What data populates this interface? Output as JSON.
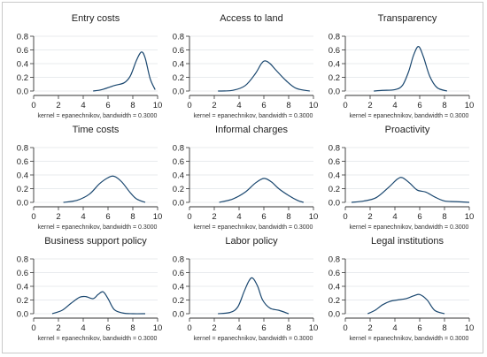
{
  "figure": {
    "ytick_labels": [
      "0.0",
      "0.2",
      "0.4",
      "0.6",
      "0.8"
    ],
    "xtick_labels": [
      "0",
      "2",
      "4",
      "6",
      "8",
      "10"
    ],
    "line_color": "#1a476f"
  },
  "chart_data": [
    {
      "type": "line",
      "title": "Entry costs",
      "note": "kernel = epanechnikov, bandwidth = 0.3000",
      "xlim": [
        0,
        10
      ],
      "ylim": [
        0,
        0.8
      ],
      "x": [
        4.8,
        5.5,
        6.5,
        7.3,
        7.8,
        8.3,
        8.7,
        9.0,
        9.4,
        9.8
      ],
      "y": [
        0.0,
        0.02,
        0.08,
        0.12,
        0.22,
        0.45,
        0.57,
        0.48,
        0.18,
        0.02
      ]
    },
    {
      "type": "line",
      "title": "Access to land",
      "note": "kernel = epanechnikov, bandwidth = 0.3000",
      "xlim": [
        0,
        10
      ],
      "ylim": [
        0,
        0.8
      ],
      "x": [
        2.3,
        3.5,
        4.5,
        5.3,
        5.8,
        6.1,
        6.5,
        7.0,
        7.8,
        8.6,
        9.7
      ],
      "y": [
        0.0,
        0.01,
        0.08,
        0.25,
        0.4,
        0.44,
        0.4,
        0.3,
        0.15,
        0.04,
        0.0
      ]
    },
    {
      "type": "line",
      "title": "Transparency",
      "note": "kernel = epanechnikov, bandwidth = 0.3000",
      "xlim": [
        0,
        10
      ],
      "ylim": [
        0,
        0.8
      ],
      "x": [
        2.3,
        3.0,
        4.0,
        4.6,
        5.1,
        5.5,
        5.9,
        6.3,
        6.8,
        7.4,
        8.2
      ],
      "y": [
        0.0,
        0.01,
        0.02,
        0.08,
        0.28,
        0.52,
        0.65,
        0.5,
        0.22,
        0.05,
        0.0
      ]
    },
    {
      "type": "line",
      "title": "Time costs",
      "note": "kernel = epanechnikov, bandwidth = 0.3000",
      "xlim": [
        0,
        10
      ],
      "ylim": [
        0,
        0.8
      ],
      "x": [
        2.4,
        3.5,
        4.5,
        5.3,
        6.0,
        6.5,
        7.1,
        7.8,
        8.3,
        9.0
      ],
      "y": [
        0.0,
        0.03,
        0.12,
        0.27,
        0.36,
        0.38,
        0.3,
        0.14,
        0.05,
        0.0
      ]
    },
    {
      "type": "line",
      "title": "Informal charges",
      "note": "kernel = epanechnikov, bandwidth = 0.3000",
      "xlim": [
        0,
        10
      ],
      "ylim": [
        0,
        0.8
      ],
      "x": [
        2.4,
        3.5,
        4.5,
        5.3,
        6.0,
        6.6,
        7.2,
        8.0,
        8.7,
        9.2
      ],
      "y": [
        0.0,
        0.05,
        0.15,
        0.28,
        0.35,
        0.3,
        0.2,
        0.1,
        0.03,
        0.0
      ]
    },
    {
      "type": "line",
      "title": "Proactivity",
      "note": "kernel = epanechnikov, bandwidth = 0.3000",
      "xlim": [
        0,
        10
      ],
      "ylim": [
        0,
        0.8
      ],
      "x": [
        0.5,
        1.5,
        2.5,
        3.5,
        4.2,
        4.6,
        5.2,
        5.8,
        6.5,
        7.2,
        8.0,
        9.0,
        10.0
      ],
      "y": [
        0.0,
        0.02,
        0.07,
        0.22,
        0.34,
        0.36,
        0.28,
        0.18,
        0.15,
        0.08,
        0.02,
        0.01,
        0.0
      ]
    },
    {
      "type": "line",
      "title": "Business support policy",
      "note": "kernel = epanechnikov, bandwidth = 0.3000",
      "xlim": [
        0,
        10
      ],
      "ylim": [
        0,
        0.8
      ],
      "x": [
        1.5,
        2.3,
        3.0,
        3.7,
        4.2,
        4.8,
        5.2,
        5.6,
        6.0,
        6.5,
        7.2,
        8.0,
        9.0
      ],
      "y": [
        0.0,
        0.05,
        0.15,
        0.24,
        0.25,
        0.22,
        0.28,
        0.32,
        0.22,
        0.06,
        0.01,
        0.0,
        0.0
      ]
    },
    {
      "type": "line",
      "title": "Labor policy",
      "note": "kernel = epanechnikov, bandwidth = 0.3000",
      "xlim": [
        0,
        10
      ],
      "ylim": [
        0,
        0.8
      ],
      "x": [
        2.3,
        3.3,
        3.9,
        4.4,
        4.8,
        5.1,
        5.5,
        5.9,
        6.5,
        7.2,
        8.0
      ],
      "y": [
        0.0,
        0.02,
        0.1,
        0.32,
        0.48,
        0.52,
        0.4,
        0.2,
        0.08,
        0.05,
        0.0
      ]
    },
    {
      "type": "line",
      "title": "Legal institutions",
      "note": "kernel = epanechnikov, bandwidth = 0.3000",
      "xlim": [
        0,
        10
      ],
      "ylim": [
        0,
        0.8
      ],
      "x": [
        1.8,
        2.4,
        3.0,
        3.6,
        4.2,
        4.9,
        5.5,
        6.0,
        6.6,
        7.2,
        8.0
      ],
      "y": [
        0.0,
        0.05,
        0.13,
        0.18,
        0.2,
        0.22,
        0.26,
        0.28,
        0.2,
        0.05,
        0.0
      ]
    }
  ]
}
